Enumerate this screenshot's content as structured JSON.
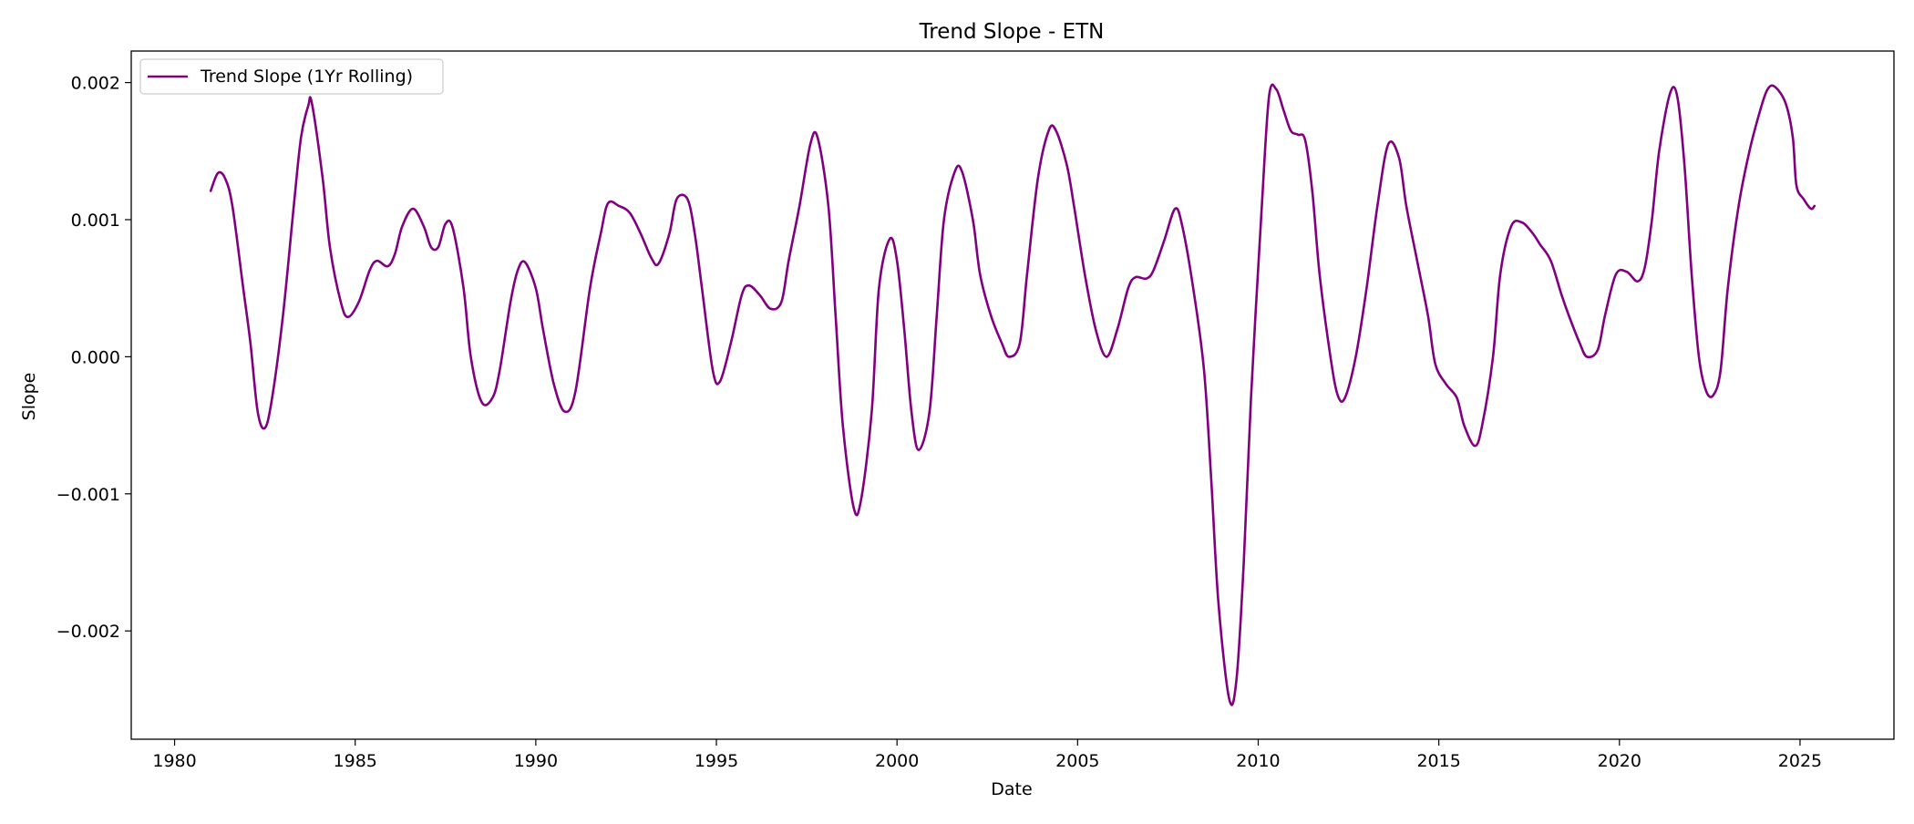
{
  "chart_data": {
    "type": "line",
    "title": "Trend Slope - ETN",
    "xlabel": "Date",
    "ylabel": "Slope",
    "xlim": [
      1978.8,
      2027.6
    ],
    "ylim": [
      -0.00279,
      0.00223
    ],
    "x_ticks": [
      1980,
      1985,
      1990,
      1995,
      2000,
      2005,
      2010,
      2015,
      2020,
      2025
    ],
    "x_tick_labels": [
      "1980",
      "1985",
      "1990",
      "1995",
      "2000",
      "2005",
      "2010",
      "2015",
      "2020",
      "2025"
    ],
    "y_ticks": [
      0.002,
      0.001,
      0.0,
      -0.001,
      -0.002
    ],
    "y_tick_labels": [
      "0.002",
      "0.001",
      "0.000",
      "−0.001",
      "−0.002"
    ],
    "grid": false,
    "legend_position": "upper-left",
    "series": [
      {
        "name": "Trend Slope (1Yr Rolling)",
        "color": "#800080",
        "points": [
          [
            1981.0,
            0.00121
          ],
          [
            1981.2,
            0.00134
          ],
          [
            1981.4,
            0.0013
          ],
          [
            1981.6,
            0.0011
          ],
          [
            1981.9,
            0.0005
          ],
          [
            1982.1,
            0.0001
          ],
          [
            1982.3,
            -0.0004
          ],
          [
            1982.5,
            -0.00052
          ],
          [
            1982.7,
            -0.0003
          ],
          [
            1983.0,
            0.0003
          ],
          [
            1983.3,
            0.0011
          ],
          [
            1983.5,
            0.0016
          ],
          [
            1983.7,
            0.00183
          ],
          [
            1983.8,
            0.00185
          ],
          [
            1984.1,
            0.0013
          ],
          [
            1984.3,
            0.0008
          ],
          [
            1984.6,
            0.0004
          ],
          [
            1984.8,
            0.00029
          ],
          [
            1985.1,
            0.0004
          ],
          [
            1985.4,
            0.00063
          ],
          [
            1985.6,
            0.0007
          ],
          [
            1985.9,
            0.00066
          ],
          [
            1986.1,
            0.00075
          ],
          [
            1986.3,
            0.00095
          ],
          [
            1986.6,
            0.00108
          ],
          [
            1986.9,
            0.00095
          ],
          [
            1987.1,
            0.0008
          ],
          [
            1987.3,
            0.0008
          ],
          [
            1987.5,
            0.00097
          ],
          [
            1987.7,
            0.00094
          ],
          [
            1988.0,
            0.0005
          ],
          [
            1988.2,
            0.0
          ],
          [
            1988.5,
            -0.00033
          ],
          [
            1988.8,
            -0.0003
          ],
          [
            1989.0,
            -0.0001
          ],
          [
            1989.3,
            0.0004
          ],
          [
            1989.5,
            0.00063
          ],
          [
            1989.7,
            0.00069
          ],
          [
            1990.0,
            0.0005
          ],
          [
            1990.2,
            0.0002
          ],
          [
            1990.5,
            -0.0002
          ],
          [
            1990.8,
            -0.0004
          ],
          [
            1991.1,
            -0.00025
          ],
          [
            1991.5,
            0.0005
          ],
          [
            1991.8,
            0.0009
          ],
          [
            1992.0,
            0.00112
          ],
          [
            1992.3,
            0.0011
          ],
          [
            1992.6,
            0.00105
          ],
          [
            1992.9,
            0.0009
          ],
          [
            1993.2,
            0.00072
          ],
          [
            1993.4,
            0.00068
          ],
          [
            1993.7,
            0.0009
          ],
          [
            1993.9,
            0.00115
          ],
          [
            1994.2,
            0.00115
          ],
          [
            1994.4,
            0.0009
          ],
          [
            1994.6,
            0.0005
          ],
          [
            1994.9,
            -0.0001
          ],
          [
            1995.1,
            -0.00018
          ],
          [
            1995.4,
            0.0001
          ],
          [
            1995.7,
            0.00045
          ],
          [
            1995.9,
            0.00052
          ],
          [
            1996.2,
            0.00045
          ],
          [
            1996.5,
            0.00035
          ],
          [
            1996.8,
            0.0004
          ],
          [
            1997.0,
            0.0007
          ],
          [
            1997.3,
            0.0011
          ],
          [
            1997.6,
            0.00155
          ],
          [
            1997.8,
            0.0016
          ],
          [
            1998.1,
            0.0011
          ],
          [
            1998.3,
            0.0003
          ],
          [
            1998.5,
            -0.0005
          ],
          [
            1998.8,
            -0.0011
          ],
          [
            1999.0,
            -0.00105
          ],
          [
            1999.3,
            -0.0004
          ],
          [
            1999.5,
            0.0005
          ],
          [
            1999.8,
            0.00086
          ],
          [
            2000.0,
            0.0007
          ],
          [
            2000.2,
            0.0002
          ],
          [
            2000.4,
            -0.0004
          ],
          [
            2000.6,
            -0.00068
          ],
          [
            2000.9,
            -0.0004
          ],
          [
            2001.1,
            0.0003
          ],
          [
            2001.3,
            0.001
          ],
          [
            2001.6,
            0.00135
          ],
          [
            2001.8,
            0.00135
          ],
          [
            2002.1,
            0.001
          ],
          [
            2002.3,
            0.0006
          ],
          [
            2002.6,
            0.0003
          ],
          [
            2002.9,
            0.0001
          ],
          [
            2003.1,
            0.0
          ],
          [
            2003.4,
            0.0001
          ],
          [
            2003.6,
            0.0006
          ],
          [
            2003.9,
            0.0013
          ],
          [
            2004.2,
            0.00165
          ],
          [
            2004.4,
            0.00165
          ],
          [
            2004.7,
            0.0014
          ],
          [
            2004.9,
            0.0011
          ],
          [
            2005.2,
            0.0006
          ],
          [
            2005.5,
            0.0002
          ],
          [
            2005.8,
            0.0
          ],
          [
            2006.1,
            0.0002
          ],
          [
            2006.4,
            0.0005
          ],
          [
            2006.6,
            0.00058
          ],
          [
            2006.9,
            0.00057
          ],
          [
            2007.1,
            0.00063
          ],
          [
            2007.4,
            0.00085
          ],
          [
            2007.7,
            0.00108
          ],
          [
            2007.9,
            0.00095
          ],
          [
            2008.2,
            0.0005
          ],
          [
            2008.5,
            -0.0001
          ],
          [
            2008.7,
            -0.0009
          ],
          [
            2008.9,
            -0.0018
          ],
          [
            2009.2,
            -0.0025
          ],
          [
            2009.4,
            -0.00235
          ],
          [
            2009.6,
            -0.0015
          ],
          [
            2009.8,
            -0.0003
          ],
          [
            2010.1,
            0.0011
          ],
          [
            2010.3,
            0.0019
          ],
          [
            2010.5,
            0.00195
          ],
          [
            2010.7,
            0.0018
          ],
          [
            2010.9,
            0.00165
          ],
          [
            2011.1,
            0.00162
          ],
          [
            2011.3,
            0.00158
          ],
          [
            2011.5,
            0.0012
          ],
          [
            2011.7,
            0.0006
          ],
          [
            2012.0,
            0.0
          ],
          [
            2012.2,
            -0.00028
          ],
          [
            2012.4,
            -0.0003
          ],
          [
            2012.7,
            0.0
          ],
          [
            2013.0,
            0.0005
          ],
          [
            2013.3,
            0.0011
          ],
          [
            2013.6,
            0.00155
          ],
          [
            2013.9,
            0.00145
          ],
          [
            2014.1,
            0.0011
          ],
          [
            2014.4,
            0.0007
          ],
          [
            2014.7,
            0.0003
          ],
          [
            2014.9,
            -5e-05
          ],
          [
            2015.2,
            -0.0002
          ],
          [
            2015.5,
            -0.0003
          ],
          [
            2015.7,
            -0.0005
          ],
          [
            2016.0,
            -0.00065
          ],
          [
            2016.2,
            -0.0005
          ],
          [
            2016.5,
            0.0
          ],
          [
            2016.7,
            0.0006
          ],
          [
            2017.0,
            0.00095
          ],
          [
            2017.3,
            0.00098
          ],
          [
            2017.6,
            0.0009
          ],
          [
            2017.8,
            0.00082
          ],
          [
            2018.1,
            0.0007
          ],
          [
            2018.4,
            0.00045
          ],
          [
            2018.6,
            0.0003
          ],
          [
            2018.9,
            0.0001
          ],
          [
            2019.1,
            0.0
          ],
          [
            2019.4,
            5e-05
          ],
          [
            2019.6,
            0.0003
          ],
          [
            2019.9,
            0.0006
          ],
          [
            2020.2,
            0.00062
          ],
          [
            2020.5,
            0.00055
          ],
          [
            2020.7,
            0.00065
          ],
          [
            2020.9,
            0.001
          ],
          [
            2021.1,
            0.0015
          ],
          [
            2021.4,
            0.00192
          ],
          [
            2021.6,
            0.0019
          ],
          [
            2021.8,
            0.0014
          ],
          [
            2022.0,
            0.0006
          ],
          [
            2022.2,
            0.0
          ],
          [
            2022.4,
            -0.00025
          ],
          [
            2022.6,
            -0.00028
          ],
          [
            2022.8,
            -0.0001
          ],
          [
            2023.0,
            0.0005
          ],
          [
            2023.3,
            0.0011
          ],
          [
            2023.6,
            0.0015
          ],
          [
            2023.9,
            0.0018
          ],
          [
            2024.1,
            0.00195
          ],
          [
            2024.3,
            0.00197
          ],
          [
            2024.6,
            0.00185
          ],
          [
            2024.8,
            0.0016
          ],
          [
            2024.9,
            0.00125
          ],
          [
            2025.1,
            0.00115
          ],
          [
            2025.3,
            0.00108
          ],
          [
            2025.4,
            0.0011
          ]
        ]
      }
    ]
  }
}
